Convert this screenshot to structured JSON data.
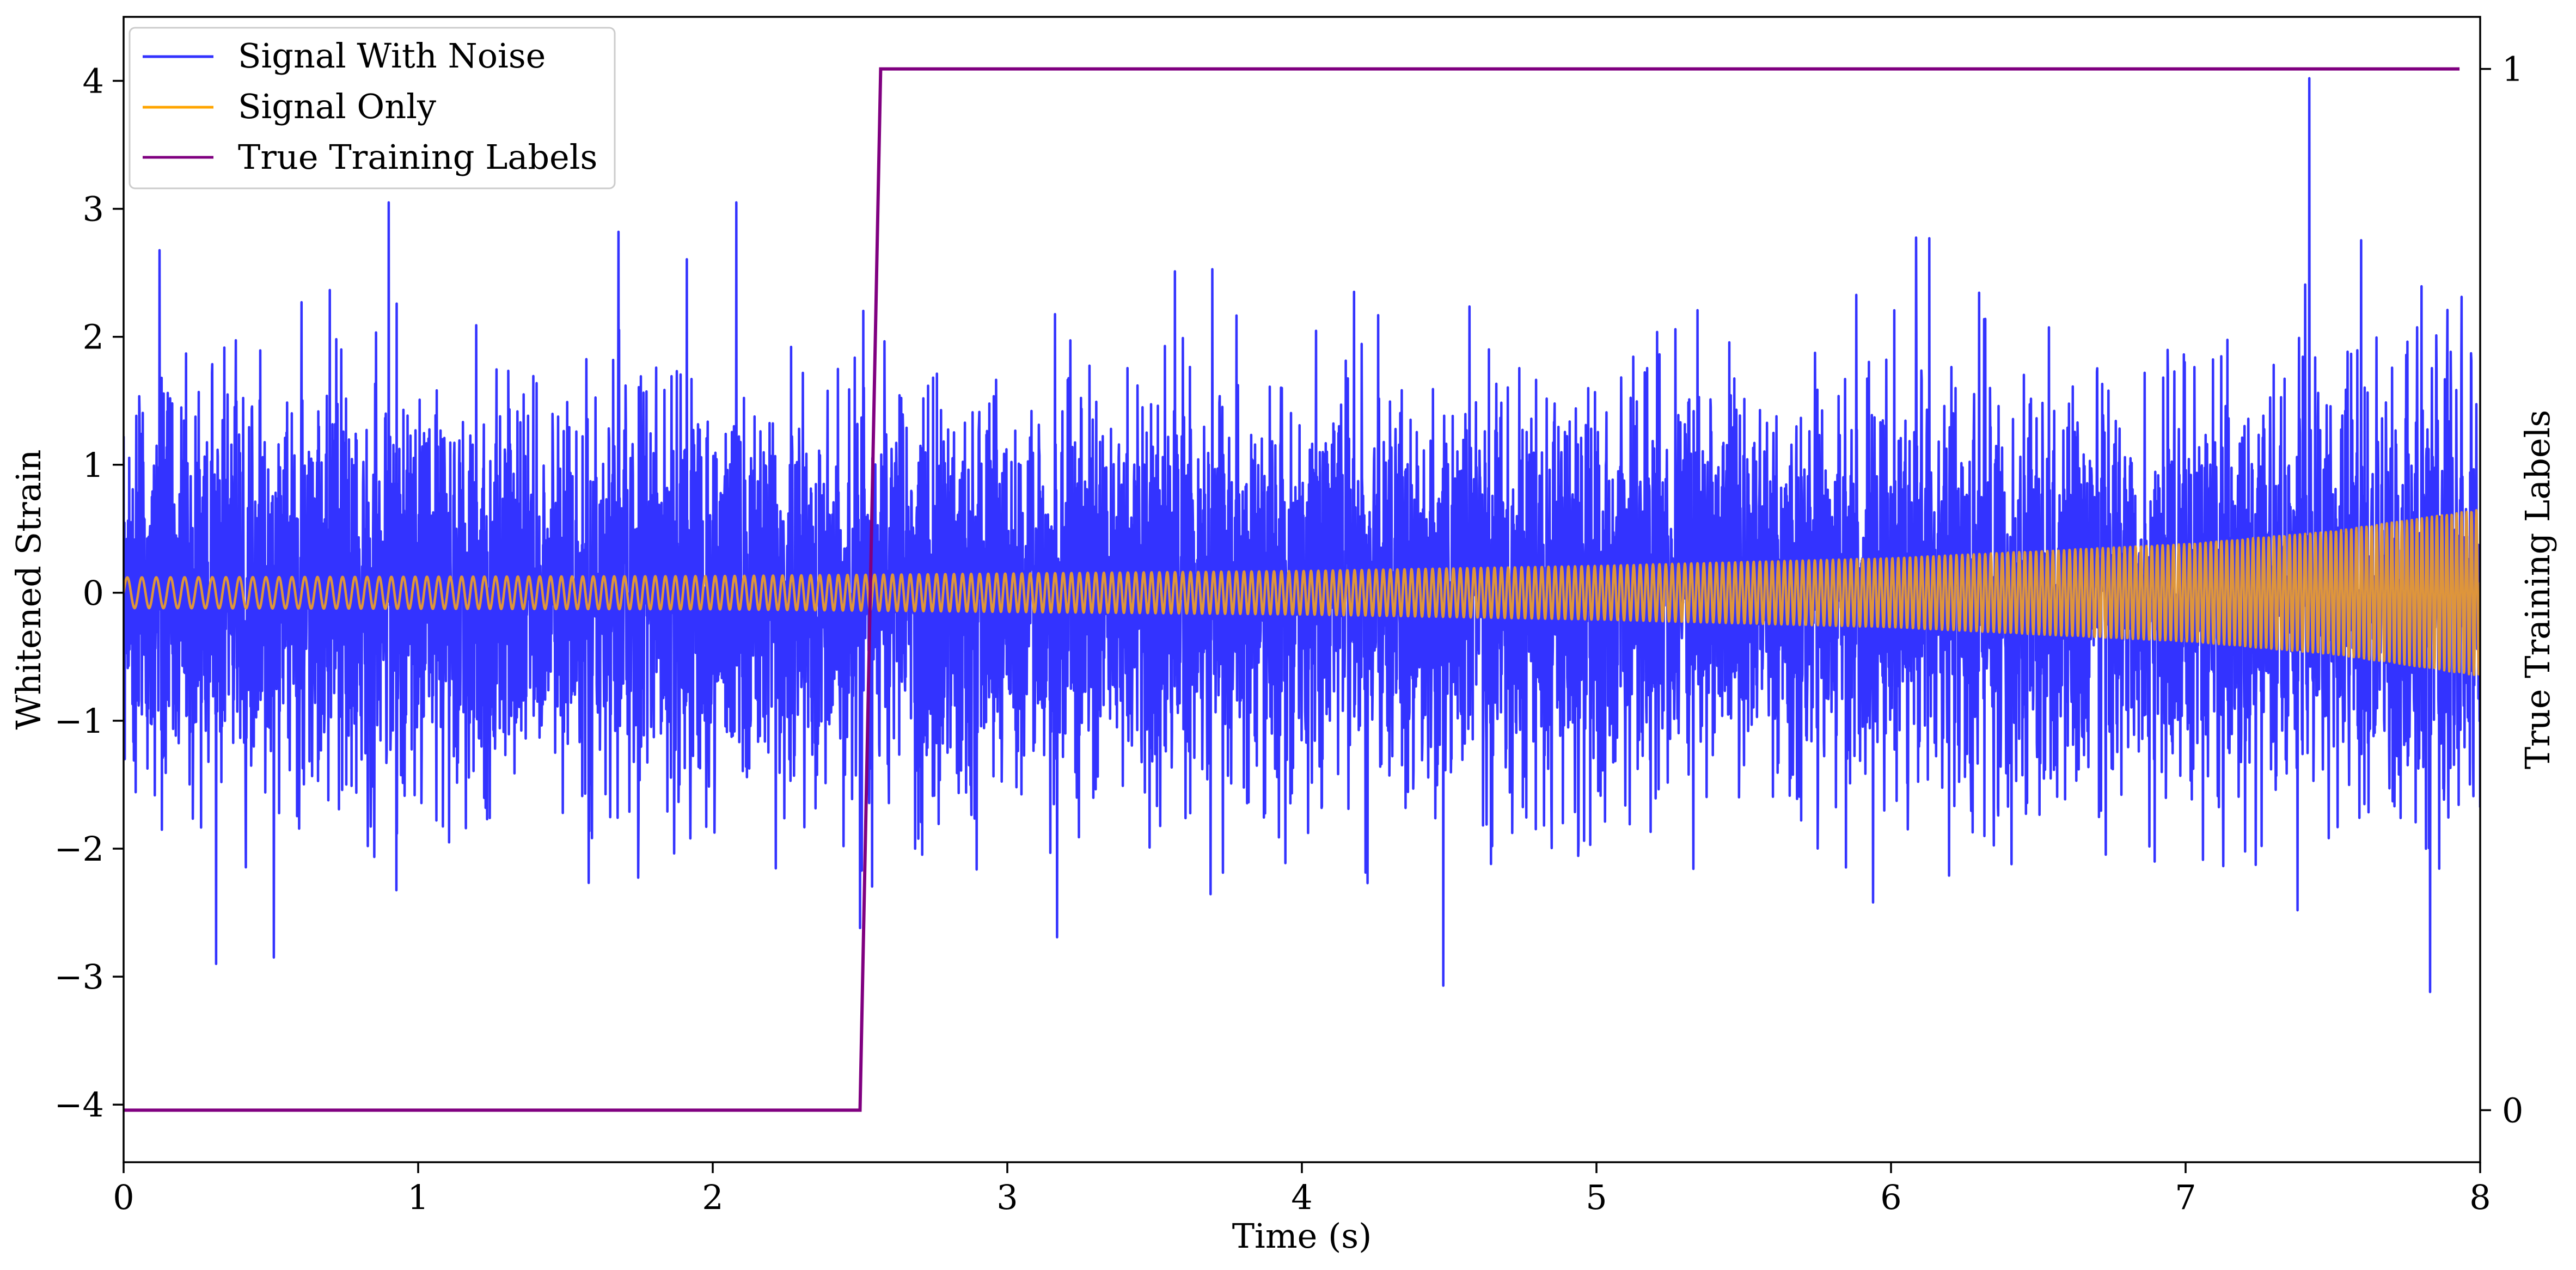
{
  "chart_data": {
    "type": "line",
    "title": "",
    "xlabel": "Time (s)",
    "ylabel": "Whitened Strain",
    "y2label": "True Training Labels",
    "xlim": [
      0,
      8
    ],
    "ylim": [
      -4.45,
      4.5
    ],
    "y2lim": [
      -0.05,
      1.05
    ],
    "xticks": [
      0,
      1,
      2,
      3,
      4,
      5,
      6,
      7,
      8
    ],
    "xtick_labels": [
      "0",
      "1",
      "2",
      "3",
      "4",
      "5",
      "6",
      "7",
      "8"
    ],
    "yticks": [
      -4,
      -3,
      -2,
      -1,
      0,
      1,
      2,
      3,
      4
    ],
    "ytick_labels": [
      "−4",
      "−3",
      "−2",
      "−1",
      "0",
      "1",
      "2",
      "3",
      "4"
    ],
    "y2ticks": [
      0,
      1
    ],
    "y2tick_labels": [
      "0",
      "1"
    ],
    "grid": false,
    "legend": {
      "position": "upper-left"
    },
    "series": [
      {
        "name": "Signal With Noise",
        "color": "#3333ff",
        "axis": "left",
        "description_stats": {
          "approx_std": 0.75,
          "max": 4.0,
          "min": -3.1
        },
        "notable_points": [
          {
            "x": 0.9,
            "y": 3.05
          },
          {
            "x": 2.08,
            "y": 3.05
          },
          {
            "x": 0.51,
            "y": -2.85
          },
          {
            "x": 2.5,
            "y": -2.62
          },
          {
            "x": 4.48,
            "y": -3.07
          },
          {
            "x": 7.42,
            "y": 4.02
          },
          {
            "x": 7.83,
            "y": -3.12
          },
          {
            "x": 6.13,
            "y": 2.77
          },
          {
            "x": 1.68,
            "y": 2.82
          }
        ]
      },
      {
        "name": "Signal Only",
        "color": "#ffa500",
        "axis": "left",
        "amplitude_envelope": {
          "x": [
            0,
            2,
            4,
            5,
            6,
            7,
            7.5,
            8
          ],
          "amp": [
            0.12,
            0.13,
            0.17,
            0.21,
            0.27,
            0.38,
            0.48,
            0.65
          ]
        },
        "frequency_hz": {
          "start": 20,
          "end": 60
        }
      },
      {
        "name": "True Training Labels",
        "color": "#800080",
        "axis": "right",
        "x": [
          0,
          2.5,
          2.57,
          7.93
        ],
        "y": [
          0,
          0,
          1,
          1
        ]
      }
    ]
  }
}
